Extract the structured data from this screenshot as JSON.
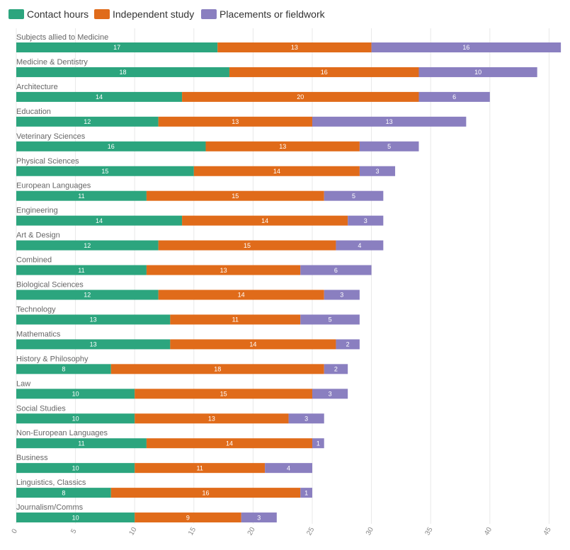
{
  "chart_data": {
    "type": "bar",
    "orientation": "horizontal",
    "stacked": true,
    "title": "",
    "xlabel": "",
    "ylabel": "",
    "xlim": [
      0,
      46
    ],
    "xticks": [
      "0",
      "5",
      "10",
      "15",
      "20",
      "25",
      "30",
      "35",
      "40",
      "45"
    ],
    "legend_position": "top-left",
    "grid": true,
    "categories": [
      "Subjects allied to Medicine",
      "Medicine & Dentistry",
      "Architecture",
      "Education",
      "Veterinary Sciences",
      "Physical Sciences",
      "European Languages",
      "Engineering",
      "Art & Design",
      "Combined",
      "Biological Sciences",
      "Technology",
      "Mathematics",
      "History & Philosophy",
      "Law",
      "Social Studies",
      "Non-European Languages",
      "Business",
      "Linguistics, Classics",
      "Journalism/Comms"
    ],
    "series": [
      {
        "name": "Contact hours",
        "color": "#2ca57e",
        "values": [
          17,
          18,
          14,
          12,
          16,
          15,
          11,
          14,
          12,
          11,
          12,
          13,
          13,
          8,
          10,
          10,
          11,
          10,
          8,
          10
        ]
      },
      {
        "name": "Independent study",
        "color": "#e06b1a",
        "values": [
          13,
          16,
          20,
          13,
          13,
          14,
          15,
          14,
          15,
          13,
          14,
          11,
          14,
          18,
          15,
          13,
          14,
          11,
          16,
          9
        ]
      },
      {
        "name": "Placements or fieldwork",
        "color": "#8a7fc0",
        "values": [
          16,
          10,
          6,
          13,
          5,
          3,
          5,
          3,
          4,
          6,
          3,
          5,
          2,
          2,
          3,
          3,
          1,
          4,
          1,
          3
        ]
      }
    ]
  }
}
